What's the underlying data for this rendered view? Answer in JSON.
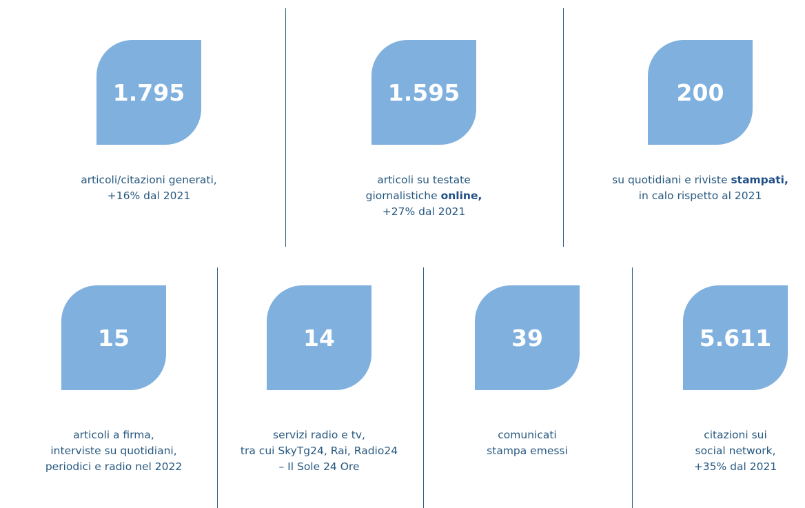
{
  "rows": [
    {
      "items": [
        {
          "value": "1.795",
          "lines": [
            [
              {
                "text": "articoli/citazioni generati,"
              }
            ],
            [
              {
                "text": "+16% dal 2021"
              }
            ]
          ]
        },
        {
          "value": "1.595",
          "lines": [
            [
              {
                "text": "articoli su testate"
              }
            ],
            [
              {
                "text": "giornalistiche "
              },
              {
                "text": "online,",
                "bold": true
              }
            ],
            [
              {
                "text": "+27% dal 2021"
              }
            ]
          ]
        },
        {
          "value": "200",
          "lines": [
            [
              {
                "text": "su quotidiani e riviste "
              },
              {
                "text": "stampati,",
                "bold": true
              }
            ],
            [
              {
                "text": "in calo rispetto al 2021"
              }
            ]
          ]
        }
      ]
    },
    {
      "items": [
        {
          "value": "15",
          "lines": [
            [
              {
                "text": "articoli a firma,"
              }
            ],
            [
              {
                "text": "interviste su quotidiani,"
              }
            ],
            [
              {
                "text": "periodici e radio nel 2022"
              }
            ]
          ]
        },
        {
          "value": "14",
          "lines": [
            [
              {
                "text": "servizi radio e tv,"
              }
            ],
            [
              {
                "text": "tra cui SkyTg24, Rai, Radio24"
              }
            ],
            [
              {
                "text": "– Il Sole 24 Ore"
              }
            ]
          ]
        },
        {
          "value": "39",
          "lines": [
            [
              {
                "text": "comunicati"
              }
            ],
            [
              {
                "text": "stampa emessi"
              }
            ]
          ]
        },
        {
          "value": "5.611",
          "lines": [
            [
              {
                "text": "citazioni sui"
              }
            ],
            [
              {
                "text": "social network,"
              }
            ],
            [
              {
                "text": "+35% dal 2021"
              }
            ]
          ]
        }
      ]
    }
  ]
}
